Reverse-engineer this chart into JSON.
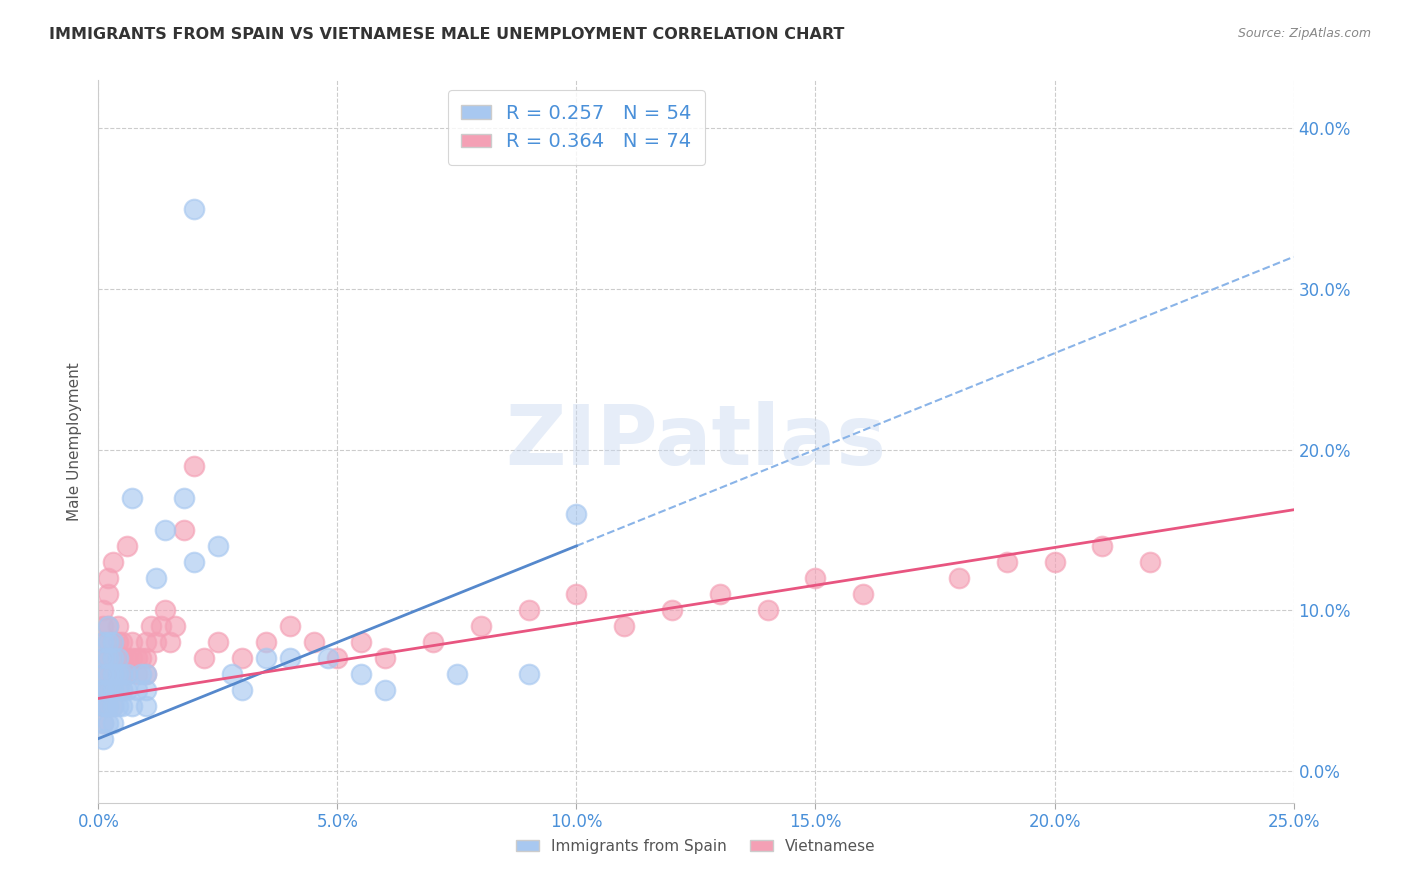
{
  "title": "IMMIGRANTS FROM SPAIN VS VIETNAMESE MALE UNEMPLOYMENT CORRELATION CHART",
  "source": "Source: ZipAtlas.com",
  "xlabel_ticks": [
    "0.0%",
    "5.0%",
    "10.0%",
    "15.0%",
    "20.0%",
    "25.0%"
  ],
  "xlabel_vals": [
    0.0,
    0.05,
    0.1,
    0.15,
    0.2,
    0.25
  ],
  "ylabel_label": "Male Unemployment",
  "ylabel_ticks": [
    "0.0%",
    "10.0%",
    "20.0%",
    "30.0%",
    "40.0%"
  ],
  "ylabel_vals": [
    0.0,
    0.1,
    0.2,
    0.3,
    0.4
  ],
  "xlim": [
    0.0,
    0.25
  ],
  "ylim": [
    -0.02,
    0.43
  ],
  "color_blue": "#a8c8f0",
  "color_pink": "#f4a0b5",
  "R_blue": 0.257,
  "N_blue": 54,
  "R_pink": 0.364,
  "N_pink": 74,
  "legend_label_blue": "Immigrants from Spain",
  "legend_label_pink": "Vietnamese",
  "watermark_text": "ZIPatlas",
  "blue_line_intercept": 0.005,
  "blue_line_slope": 0.88,
  "pink_line_intercept": 0.04,
  "pink_line_slope": 0.52,
  "blue_x": [
    0.0005,
    0.001,
    0.001,
    0.001,
    0.001,
    0.001,
    0.001,
    0.001,
    0.0015,
    0.002,
    0.002,
    0.002,
    0.002,
    0.002,
    0.002,
    0.002,
    0.003,
    0.003,
    0.003,
    0.003,
    0.003,
    0.003,
    0.004,
    0.004,
    0.004,
    0.004,
    0.005,
    0.005,
    0.005,
    0.006,
    0.006,
    0.007,
    0.007,
    0.008,
    0.009,
    0.01,
    0.01,
    0.01,
    0.012,
    0.014,
    0.018,
    0.02,
    0.025,
    0.028,
    0.03,
    0.035,
    0.04,
    0.048,
    0.055,
    0.06,
    0.075,
    0.09,
    0.1,
    0.02
  ],
  "blue_y": [
    0.05,
    0.04,
    0.06,
    0.07,
    0.03,
    0.08,
    0.05,
    0.02,
    0.04,
    0.06,
    0.05,
    0.07,
    0.08,
    0.04,
    0.03,
    0.09,
    0.05,
    0.06,
    0.07,
    0.04,
    0.08,
    0.03,
    0.05,
    0.06,
    0.07,
    0.04,
    0.05,
    0.06,
    0.04,
    0.05,
    0.06,
    0.04,
    0.17,
    0.05,
    0.06,
    0.04,
    0.05,
    0.06,
    0.12,
    0.15,
    0.17,
    0.13,
    0.14,
    0.06,
    0.05,
    0.07,
    0.07,
    0.07,
    0.06,
    0.05,
    0.06,
    0.06,
    0.16,
    0.35
  ],
  "pink_x": [
    0.0005,
    0.001,
    0.001,
    0.001,
    0.001,
    0.001,
    0.001,
    0.001,
    0.001,
    0.0015,
    0.002,
    0.002,
    0.002,
    0.002,
    0.002,
    0.002,
    0.002,
    0.003,
    0.003,
    0.003,
    0.003,
    0.003,
    0.003,
    0.004,
    0.004,
    0.004,
    0.004,
    0.005,
    0.005,
    0.005,
    0.005,
    0.006,
    0.006,
    0.006,
    0.007,
    0.007,
    0.008,
    0.008,
    0.009,
    0.01,
    0.01,
    0.01,
    0.011,
    0.012,
    0.013,
    0.014,
    0.015,
    0.016,
    0.018,
    0.02,
    0.022,
    0.025,
    0.03,
    0.035,
    0.04,
    0.045,
    0.05,
    0.055,
    0.06,
    0.07,
    0.08,
    0.09,
    0.1,
    0.11,
    0.12,
    0.13,
    0.14,
    0.15,
    0.16,
    0.18,
    0.19,
    0.2,
    0.21,
    0.22
  ],
  "pink_y": [
    0.05,
    0.04,
    0.06,
    0.07,
    0.03,
    0.08,
    0.09,
    0.05,
    0.1,
    0.06,
    0.07,
    0.08,
    0.05,
    0.09,
    0.11,
    0.04,
    0.12,
    0.05,
    0.06,
    0.07,
    0.08,
    0.04,
    0.13,
    0.06,
    0.07,
    0.08,
    0.09,
    0.06,
    0.07,
    0.08,
    0.05,
    0.06,
    0.07,
    0.14,
    0.07,
    0.08,
    0.06,
    0.07,
    0.07,
    0.06,
    0.07,
    0.08,
    0.09,
    0.08,
    0.09,
    0.1,
    0.08,
    0.09,
    0.15,
    0.19,
    0.07,
    0.08,
    0.07,
    0.08,
    0.09,
    0.08,
    0.07,
    0.08,
    0.07,
    0.08,
    0.09,
    0.1,
    0.11,
    0.09,
    0.1,
    0.11,
    0.1,
    0.12,
    0.11,
    0.12,
    0.13,
    0.13,
    0.14,
    0.13
  ]
}
